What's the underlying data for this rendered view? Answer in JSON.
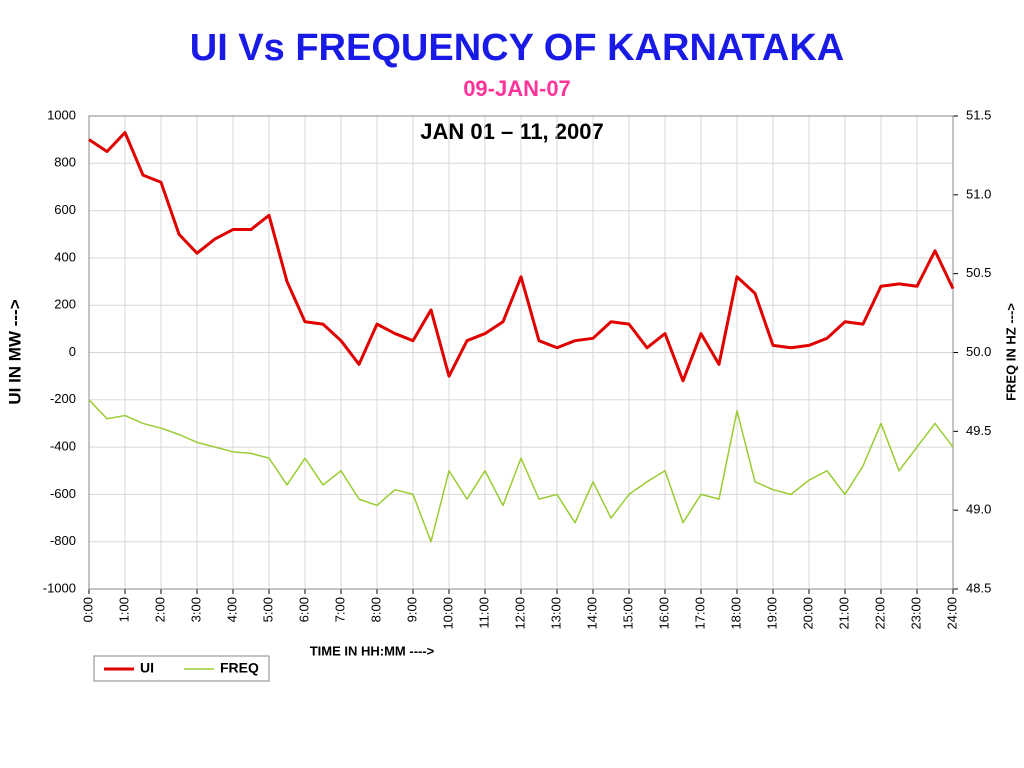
{
  "chart_data": {
    "type": "line",
    "title": "UI Vs FREQUENCY OF KARNATAKA",
    "subtitle": "09-JAN-07",
    "annotation": "JAN 01 – 11, 2007",
    "ylabel": "UI IN MW  --->",
    "y2label": "FREQ IN HZ  --->",
    "xlabel": "TIME IN HH:MM  ---->",
    "x": [
      0,
      0.5,
      1,
      1.5,
      2,
      2.5,
      3,
      3.5,
      4,
      4.5,
      5,
      5.5,
      6,
      6.5,
      7,
      7.5,
      8,
      8.5,
      9,
      9.5,
      10,
      10.5,
      11,
      11.5,
      12,
      12.5,
      13,
      13.5,
      14,
      14.5,
      15,
      15.5,
      16,
      16.5,
      17,
      17.5,
      18,
      18.5,
      19,
      19.5,
      20,
      20.5,
      21,
      21.5,
      22,
      22.5,
      23,
      23.5,
      24
    ],
    "series": [
      {
        "name": "UI",
        "color": "#e00000",
        "values": [
          900,
          850,
          930,
          750,
          720,
          500,
          420,
          480,
          520,
          520,
          580,
          300,
          130,
          120,
          50,
          -50,
          120,
          80,
          50,
          180,
          -100,
          50,
          80,
          130,
          320,
          50,
          20,
          50,
          60,
          130,
          120,
          20,
          80,
          -120,
          80,
          -50,
          320,
          250,
          30,
          20,
          30,
          60,
          130,
          120,
          280,
          290,
          280,
          430,
          270
        ]
      },
      {
        "name": "FREQ",
        "color": "#99cc33",
        "axis": "y2",
        "values": [
          49.7,
          49.58,
          49.6,
          49.55,
          49.52,
          49.48,
          49.43,
          49.4,
          49.37,
          49.36,
          49.33,
          49.16,
          49.33,
          49.16,
          49.25,
          49.07,
          49.03,
          49.13,
          49.1,
          48.8,
          49.25,
          49.07,
          49.25,
          49.03,
          49.33,
          49.07,
          49.1,
          48.92,
          49.18,
          48.95,
          49.1,
          49.18,
          49.25,
          48.92,
          49.1,
          49.07,
          49.63,
          49.18,
          49.13,
          49.1,
          49.19,
          49.25,
          49.1,
          49.28,
          49.55,
          49.25,
          49.4,
          49.55,
          49.4
        ]
      }
    ],
    "xlim": [
      0,
      24
    ],
    "xticks": [
      {
        "value": 0,
        "label": "0:00"
      },
      {
        "value": 1,
        "label": "1:00"
      },
      {
        "value": 2,
        "label": "2:00"
      },
      {
        "value": 3,
        "label": "3:00"
      },
      {
        "value": 4,
        "label": "4:00"
      },
      {
        "value": 5,
        "label": "5:00"
      },
      {
        "value": 6,
        "label": "6:00"
      },
      {
        "value": 7,
        "label": "7:00"
      },
      {
        "value": 8,
        "label": "8:00"
      },
      {
        "value": 9,
        "label": "9:00"
      },
      {
        "value": 10,
        "label": "10:00"
      },
      {
        "value": 11,
        "label": "11:00"
      },
      {
        "value": 12,
        "label": "12:00"
      },
      {
        "value": 13,
        "label": "13:00"
      },
      {
        "value": 14,
        "label": "14:00"
      },
      {
        "value": 15,
        "label": "15:00"
      },
      {
        "value": 16,
        "label": "16:00"
      },
      {
        "value": 17,
        "label": "17:00"
      },
      {
        "value": 18,
        "label": "18:00"
      },
      {
        "value": 19,
        "label": "19:00"
      },
      {
        "value": 20,
        "label": "20:00"
      },
      {
        "value": 21,
        "label": "21:00"
      },
      {
        "value": 22,
        "label": "22:00"
      },
      {
        "value": 23,
        "label": "23:00"
      },
      {
        "value": 24,
        "label": "24:00"
      }
    ],
    "ylim": [
      -1000,
      1000
    ],
    "yticks": [
      -1000,
      -800,
      -600,
      -400,
      -200,
      0,
      200,
      400,
      600,
      800,
      1000
    ],
    "y2lim": [
      48.5,
      51.5
    ],
    "y2ticks": [
      48.5,
      {
        "value": 49,
        "label": "49.0"
      },
      49.5,
      {
        "value": 50,
        "label": "50.0"
      },
      50.5,
      {
        "value": 51,
        "label": "51.0"
      },
      51.5
    ],
    "grid": true,
    "legend": "bottom-left"
  }
}
